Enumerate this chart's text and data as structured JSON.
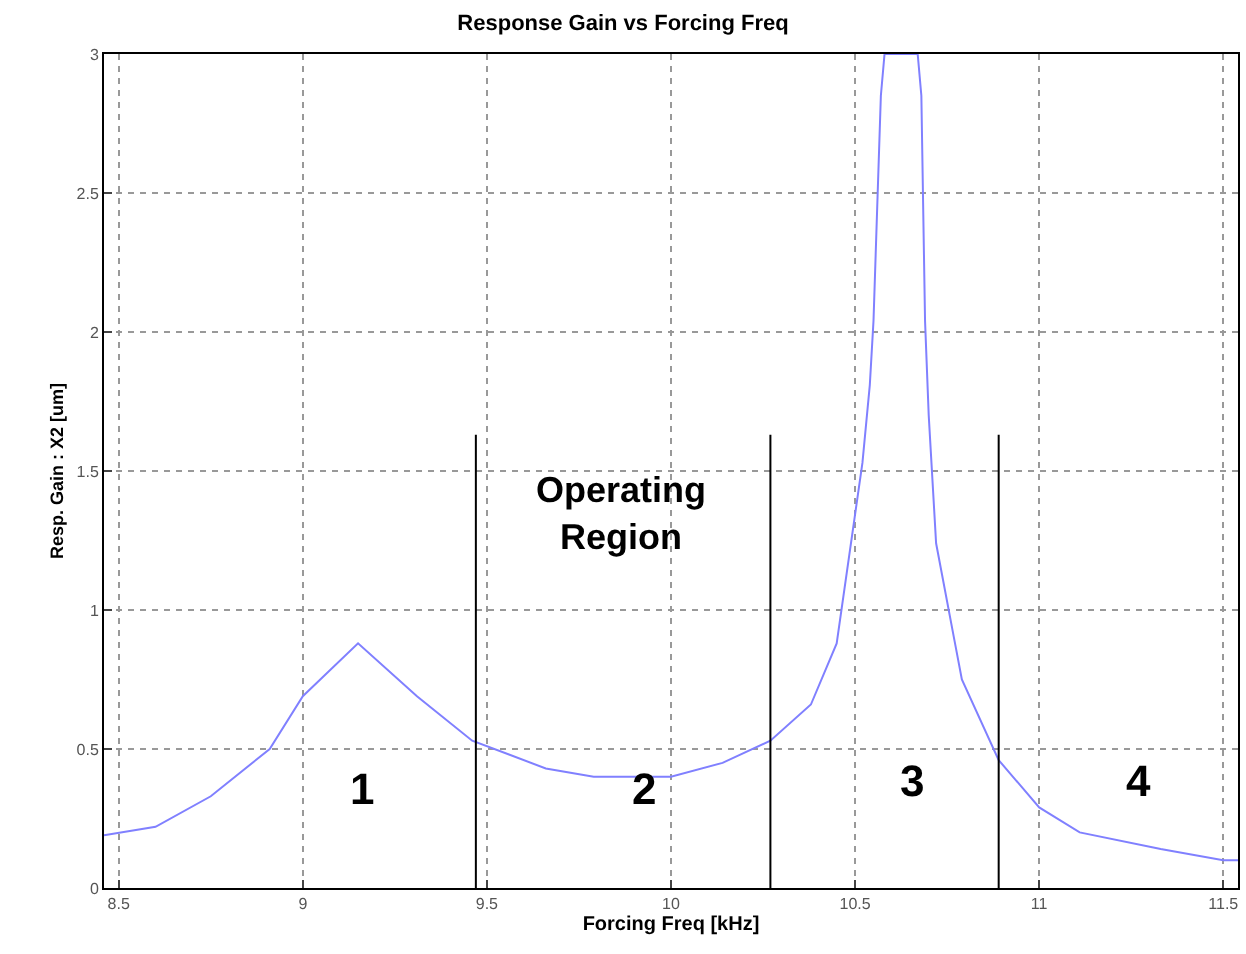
{
  "chart_data": {
    "type": "line",
    "title": "Response Gain vs Forcing Freq",
    "xlabel": "Forcing Freq [kHz]",
    "ylabel": "Resp. Gain : X2 [um]",
    "xlim": [
      8.46,
      11.54
    ],
    "xticks": [
      8.5,
      9,
      9.5,
      10,
      10.5,
      11,
      11.5
    ],
    "ylim": [
      0,
      3
    ],
    "yticks": [
      0,
      0.5,
      1,
      1.5,
      2,
      2.5,
      3
    ],
    "grid": true,
    "line_style": "solid",
    "series": [
      {
        "color": "#8080ff",
        "x": [
          8.46,
          8.6,
          8.75,
          8.91,
          9.0,
          9.15,
          9.31,
          9.46,
          9.66,
          9.79,
          10.0,
          10.14,
          10.27,
          10.38,
          10.45,
          10.52,
          10.54,
          10.55,
          10.57,
          10.58,
          10.67,
          10.68,
          10.69,
          10.7,
          10.72,
          10.77,
          10.79,
          10.89,
          11.0,
          11.11,
          11.33,
          11.5,
          11.54
        ],
        "values": [
          0.19,
          0.22,
          0.33,
          0.5,
          0.69,
          0.88,
          0.69,
          0.53,
          0.43,
          0.4,
          0.4,
          0.45,
          0.53,
          0.66,
          0.88,
          1.53,
          1.81,
          2.04,
          2.85,
          3,
          3,
          2.85,
          2.04,
          1.7,
          1.24,
          0.89,
          0.75,
          0.46,
          0.29,
          0.2,
          0.14,
          0.1,
          0.1
        ]
      },
      {
        "color": "#000000",
        "x": [
          9.47,
          9.47
        ],
        "values": [
          0,
          1.63
        ]
      },
      {
        "color": "#000000",
        "x": [
          10.27,
          10.27
        ],
        "values": [
          0,
          1.63
        ]
      },
      {
        "color": "#000000",
        "x": [
          10.89,
          10.89
        ],
        "values": [
          0,
          1.63
        ]
      }
    ],
    "annotations": [
      "Operating Region",
      "1",
      "2",
      "3",
      "4"
    ]
  }
}
